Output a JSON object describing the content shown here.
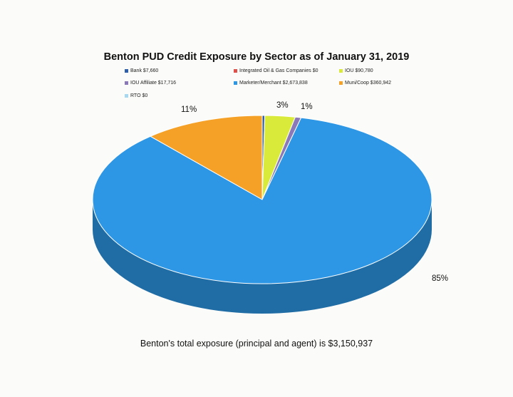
{
  "chart_data": {
    "type": "pie",
    "title": "Benton PUD Credit Exposure by Sector as of January 31, 2019",
    "legend_placement": "top",
    "series": [
      {
        "name": "Bank",
        "legend": "Bank $7,660",
        "value": 7660,
        "color": "#2e5fa8"
      },
      {
        "name": "Integrated Oil & Gas Companies",
        "legend": "Integrated Oil & Gas Companies $0",
        "value": 0,
        "color": "#e0504b"
      },
      {
        "name": "IOU",
        "legend": "IOU $90,780",
        "value": 90780,
        "color": "#d9ea3a"
      },
      {
        "name": "IOU Affiliate",
        "legend": "IOU Affiliate $17,716",
        "value": 17716,
        "color": "#8a78b8"
      },
      {
        "name": "Marketer/Merchant",
        "legend": "Marketer/Merchant $2,673,838",
        "value": 2673838,
        "color": "#2d97e6"
      },
      {
        "name": "Muni/Coop",
        "legend": "Muni/Coop $360,942",
        "value": 360942,
        "color": "#f5a128"
      },
      {
        "name": "RTO",
        "legend": "RTO $0",
        "value": 0,
        "color": "#a8d8f0"
      }
    ],
    "data_labels": {
      "Muni/Coop": "11%",
      "IOU": "3%",
      "IOU Affiliate": "1%",
      "Marketer/Merchant": "85%"
    }
  },
  "footer": "Benton's total exposure (principal and agent) is $3,150,937"
}
